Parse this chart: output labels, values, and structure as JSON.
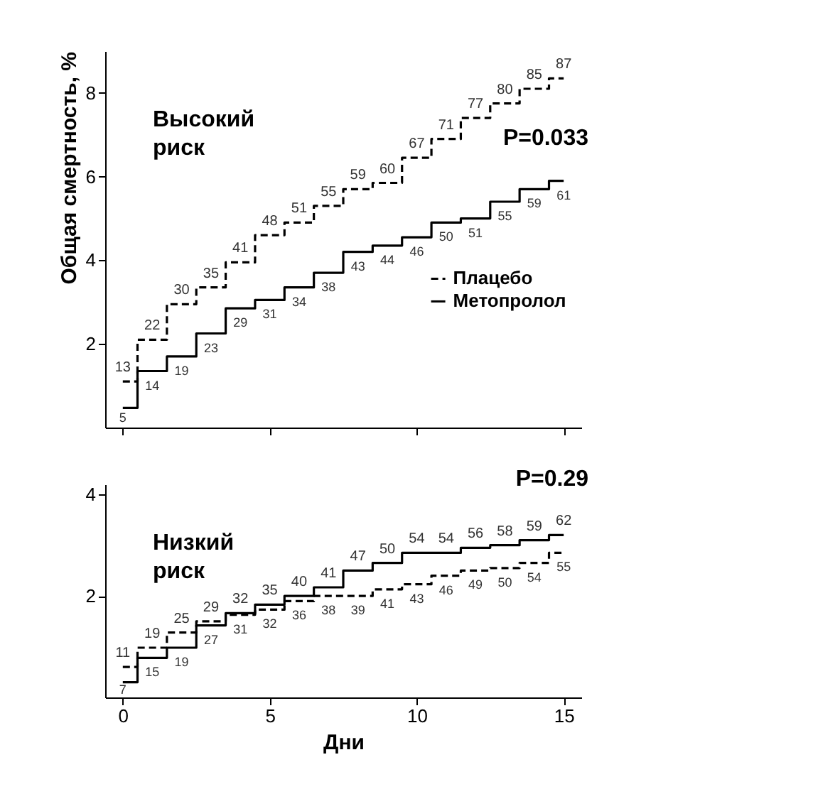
{
  "chart_data": [
    {
      "type": "step",
      "ylabel": "Общая смертность, %",
      "x": [
        0,
        1,
        2,
        3,
        4,
        5,
        6,
        7,
        8,
        9,
        10,
        11,
        12,
        13,
        14,
        15
      ],
      "xlim": [
        -0.6,
        15.6
      ],
      "xticks": [
        0,
        5,
        10,
        15
      ],
      "ylim": [
        0,
        9
      ],
      "yticks": [
        2,
        4,
        6,
        8
      ],
      "tick_labels": "y",
      "grid": false,
      "legend": "right",
      "annotations": [
        "Высокий риск",
        "P=0.033",
        {
          "text": "13",
          "x": 0,
          "y": 1.1
        },
        {
          "text": "22",
          "x": 1,
          "y": 2.1
        },
        {
          "text": "30",
          "x": 2,
          "y": 2.95
        },
        {
          "text": "35",
          "x": 3,
          "y": 3.35
        },
        {
          "text": "41",
          "x": 4,
          "y": 3.95
        },
        {
          "text": "48",
          "x": 5,
          "y": 4.6
        },
        {
          "text": "51",
          "x": 6,
          "y": 4.9
        },
        {
          "text": "55",
          "x": 7,
          "y": 5.3
        },
        {
          "text": "59",
          "x": 8,
          "y": 5.7
        },
        {
          "text": "60",
          "x": 9,
          "y": 5.85
        },
        {
          "text": "67",
          "x": 10,
          "y": 6.45
        },
        {
          "text": "71",
          "x": 11,
          "y": 6.9
        },
        {
          "text": "77",
          "x": 12,
          "y": 7.4
        },
        {
          "text": "80",
          "x": 13,
          "y": 7.75
        },
        {
          "text": "85",
          "x": 14,
          "y": 8.1
        },
        {
          "text": "87",
          "x": 15,
          "y": 8.35
        },
        {
          "text": "5",
          "x": 0,
          "y": 0.47
        },
        {
          "text": "14",
          "x": 1,
          "y": 1.35
        },
        {
          "text": "19",
          "x": 2,
          "y": 1.7
        },
        {
          "text": "23",
          "x": 3,
          "y": 2.25
        },
        {
          "text": "29",
          "x": 4,
          "y": 2.85
        },
        {
          "text": "31",
          "x": 5,
          "y": 3.05
        },
        {
          "text": "34",
          "x": 6,
          "y": 3.35
        },
        {
          "text": "38",
          "x": 7,
          "y": 3.7
        },
        {
          "text": "43",
          "x": 8,
          "y": 4.2
        },
        {
          "text": "44",
          "x": 9,
          "y": 4.35
        },
        {
          "text": "46",
          "x": 10,
          "y": 4.55
        },
        {
          "text": "50",
          "x": 11,
          "y": 4.9
        },
        {
          "text": "51",
          "x": 12,
          "y": 5.0
        },
        {
          "text": "55",
          "x": 13,
          "y": 5.4
        },
        {
          "text": "59",
          "x": 14,
          "y": 5.7
        },
        {
          "text": "61",
          "x": 15,
          "y": 5.9
        }
      ],
      "series": [
        {
          "name": "Плацебо",
          "color": "#000000",
          "line_style": "dashed",
          "values": [
            1.1,
            2.1,
            2.95,
            3.35,
            3.95,
            4.6,
            4.9,
            5.3,
            5.7,
            5.85,
            6.45,
            6.9,
            7.4,
            7.75,
            8.1,
            8.35
          ]
        },
        {
          "name": "Метопролол",
          "color": "#000000",
          "line_style": "solid",
          "values": [
            0.47,
            1.35,
            1.7,
            2.25,
            2.85,
            3.05,
            3.35,
            3.7,
            4.2,
            4.35,
            4.55,
            4.9,
            5.0,
            5.4,
            5.7,
            5.9
          ]
        }
      ]
    },
    {
      "type": "step",
      "xlabel": "Дни",
      "x": [
        0,
        1,
        2,
        3,
        4,
        5,
        6,
        7,
        8,
        9,
        10,
        11,
        12,
        13,
        14,
        15
      ],
      "xlim": [
        -0.6,
        15.6
      ],
      "xticks": [
        0,
        5,
        10,
        15
      ],
      "ylim": [
        0,
        4.2
      ],
      "yticks": [
        2,
        4
      ],
      "grid": false,
      "annotations": [
        "Низкий риск",
        "P=0.29",
        {
          "text": "11",
          "x": 0,
          "y": 0.6
        },
        {
          "text": "19",
          "x": 1,
          "y": 0.98
        },
        {
          "text": "25",
          "x": 2,
          "y": 1.28
        },
        {
          "text": "29",
          "x": 3,
          "y": 1.5
        },
        {
          "text": "31",
          "x": 4,
          "y": 1.63
        },
        {
          "text": "32",
          "x": 5,
          "y": 1.73
        },
        {
          "text": "36",
          "x": 6,
          "y": 1.9
        },
        {
          "text": "38",
          "x": 7,
          "y": 2.0
        },
        {
          "text": "39",
          "x": 8,
          "y": 2.0
        },
        {
          "text": "41",
          "x": 9,
          "y": 2.13
        },
        {
          "text": "43",
          "x": 10,
          "y": 2.23
        },
        {
          "text": "46",
          "x": 11,
          "y": 2.4
        },
        {
          "text": "49",
          "x": 12,
          "y": 2.5
        },
        {
          "text": "50",
          "x": 13,
          "y": 2.55
        },
        {
          "text": "54",
          "x": 14,
          "y": 2.65
        },
        {
          "text": "55",
          "x": 15,
          "y": 2.85
        },
        {
          "text": "7",
          "x": 0,
          "y": 0.3
        },
        {
          "text": "15",
          "x": 1,
          "y": 0.78
        },
        {
          "text": "19",
          "x": 2,
          "y": 0.98
        },
        {
          "text": "27",
          "x": 3,
          "y": 1.42
        },
        {
          "text": "32",
          "x": 4,
          "y": 1.66
        },
        {
          "text": "35",
          "x": 5,
          "y": 1.83
        },
        {
          "text": "40",
          "x": 6,
          "y": 2.0
        },
        {
          "text": "41",
          "x": 7,
          "y": 2.17
        },
        {
          "text": "47",
          "x": 8,
          "y": 2.5
        },
        {
          "text": "50",
          "x": 9,
          "y": 2.65
        },
        {
          "text": "54",
          "x": 10,
          "y": 2.85
        },
        {
          "text": "54",
          "x": 11,
          "y": 2.85
        },
        {
          "text": "56",
          "x": 12,
          "y": 2.95
        },
        {
          "text": "58",
          "x": 13,
          "y": 3.0
        },
        {
          "text": "59",
          "x": 14,
          "y": 3.1
        },
        {
          "text": "62",
          "x": 15,
          "y": 3.2
        }
      ],
      "series": [
        {
          "name": "Плацебо",
          "color": "#000000",
          "line_style": "dashed",
          "values": [
            0.6,
            0.98,
            1.28,
            1.5,
            1.63,
            1.73,
            1.9,
            2.0,
            2.0,
            2.13,
            2.23,
            2.4,
            2.5,
            2.55,
            2.65,
            2.85
          ]
        },
        {
          "name": "Метопролол",
          "color": "#000000",
          "line_style": "solid",
          "values": [
            0.3,
            0.78,
            0.98,
            1.42,
            1.66,
            1.83,
            2.0,
            2.17,
            2.5,
            2.65,
            2.85,
            2.85,
            2.95,
            3.0,
            3.1,
            3.2
          ]
        }
      ]
    }
  ]
}
